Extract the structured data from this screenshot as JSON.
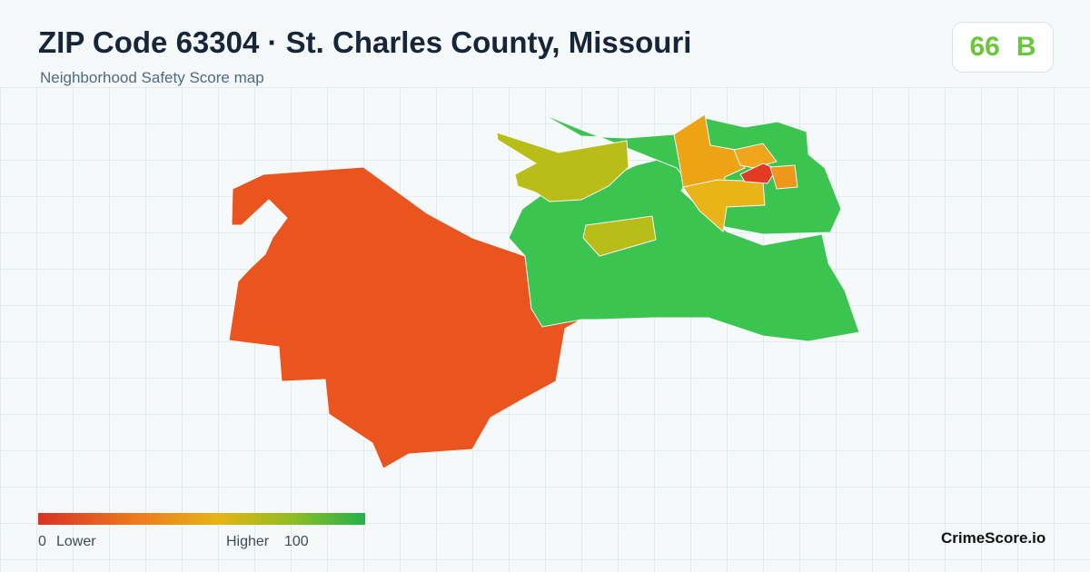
{
  "header": {
    "title": "ZIP Code 63304 · St. Charles County, Missouri",
    "subtitle": "Neighborhood Safety Score map"
  },
  "score": {
    "value": 66,
    "grade": "B"
  },
  "legend": {
    "min": 0,
    "min_label": "Lower",
    "max_label": "Higher",
    "max": 100
  },
  "brand": "CrimeScore.io"
}
